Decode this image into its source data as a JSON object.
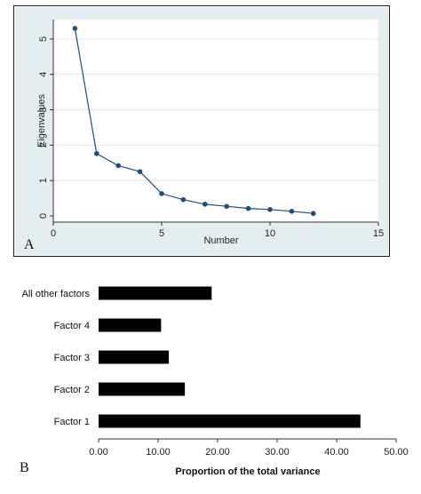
{
  "chart_data": [
    {
      "type": "line",
      "panel_label": "A",
      "xlabel": "Number",
      "ylabel": "Eigenvalues",
      "xlim": [
        0,
        15
      ],
      "ylim": [
        0,
        5.3
      ],
      "xticks": [
        "0",
        "5",
        "10",
        "15"
      ],
      "yticks": [
        "0",
        "1",
        "2",
        "3",
        "4",
        "5"
      ],
      "grid": true,
      "x": [
        1,
        2,
        3,
        4,
        5,
        6,
        7,
        8,
        9,
        10,
        11,
        12
      ],
      "y": [
        5.3,
        1.76,
        1.42,
        1.25,
        0.63,
        0.46,
        0.33,
        0.27,
        0.21,
        0.18,
        0.13,
        0.07
      ],
      "colors": {
        "plot_bg": "#ffffff",
        "outer_bg": "#e4eef0",
        "line": "#1f4e79",
        "marker": "#1f4e79"
      }
    },
    {
      "type": "bar",
      "orientation": "horizontal",
      "panel_label": "B",
      "xlabel": "Proportion of the total variance",
      "categories": [
        "Factor 1",
        "Factor 2",
        "Factor 3",
        "Factor 4",
        "All other factors"
      ],
      "values": [
        44.0,
        14.5,
        11.8,
        10.5,
        19.0
      ],
      "xlim": [
        0,
        50
      ],
      "xticks": [
        "0.00",
        "10.00",
        "20.00",
        "30.00",
        "40.00",
        "50.00"
      ],
      "colors": {
        "bar": "#000000"
      }
    }
  ]
}
